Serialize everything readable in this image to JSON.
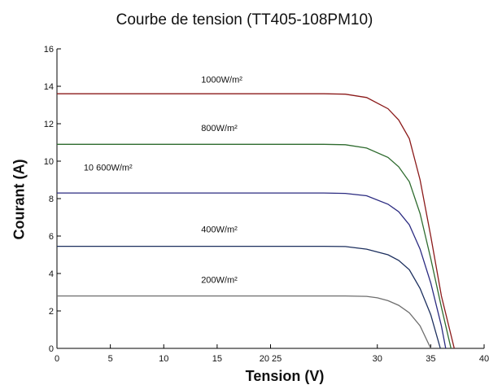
{
  "chart_data": {
    "type": "line",
    "title": "Courbe de tension (TT405-108PM10)",
    "xlabel": "Tension (V)",
    "ylabel": "Courant (A)",
    "xlim": [
      0,
      40
    ],
    "ylim": [
      0,
      16
    ],
    "x_tick_labels": [
      {
        "value": 0,
        "label": "0"
      },
      {
        "value": 5,
        "label": "5"
      },
      {
        "value": 10,
        "label": "10"
      },
      {
        "value": 15,
        "label": "15"
      },
      {
        "value": 20,
        "label": "20 25"
      },
      {
        "value": 30,
        "label": "30"
      },
      {
        "value": 35,
        "label": "35"
      },
      {
        "value": 40,
        "label": "40"
      }
    ],
    "y_tick_labels": [
      {
        "value": 0,
        "label": "0"
      },
      {
        "value": 2,
        "label": "2"
      },
      {
        "value": 4,
        "label": "4"
      },
      {
        "value": 6,
        "label": "6"
      },
      {
        "value": 8,
        "label": "8"
      },
      {
        "value": 10,
        "label": "10"
      },
      {
        "value": 12,
        "label": "12"
      },
      {
        "value": 14,
        "label": "14"
      },
      {
        "value": 16,
        "label": "16"
      }
    ],
    "grid": false,
    "series": [
      {
        "name": "1000W/m²",
        "color": "#8b1a1a",
        "x": [
          0,
          20,
          25,
          27,
          29,
          31,
          32,
          33,
          34,
          35,
          36,
          37.2
        ],
        "y": [
          13.6,
          13.6,
          13.6,
          13.58,
          13.4,
          12.8,
          12.2,
          11.2,
          9.0,
          6.0,
          2.8,
          0
        ]
      },
      {
        "name": "800W/m²",
        "color": "#2e6b2e",
        "x": [
          0,
          20,
          25,
          27,
          29,
          31,
          32,
          33,
          34,
          35,
          36,
          36.9
        ],
        "y": [
          10.9,
          10.9,
          10.9,
          10.88,
          10.7,
          10.2,
          9.7,
          8.9,
          7.2,
          4.8,
          2.2,
          0
        ]
      },
      {
        "name": "600W/m²",
        "color": "#2a2a80",
        "x": [
          0,
          20,
          25,
          27,
          29,
          31,
          32,
          33,
          34,
          35,
          36,
          36.4
        ],
        "y": [
          8.3,
          8.3,
          8.3,
          8.28,
          8.15,
          7.7,
          7.3,
          6.6,
          5.3,
          3.5,
          1.2,
          0
        ]
      },
      {
        "name": "400W/m²",
        "color": "#1c2f5e",
        "x": [
          0,
          20,
          25,
          27,
          29,
          31,
          32,
          33,
          34,
          35,
          35.9
        ],
        "y": [
          5.45,
          5.45,
          5.45,
          5.44,
          5.3,
          5.0,
          4.7,
          4.2,
          3.2,
          1.8,
          0
        ]
      },
      {
        "name": "200W/m²",
        "color": "#6e6e6e",
        "x": [
          0,
          20,
          25,
          27,
          29,
          30,
          31,
          32,
          33,
          34,
          35
        ],
        "y": [
          2.8,
          2.8,
          2.8,
          2.8,
          2.78,
          2.7,
          2.55,
          2.3,
          1.9,
          1.2,
          0
        ]
      }
    ],
    "annotations": [
      {
        "text": "1000W/m²",
        "x": 13.5,
        "y": 14.2
      },
      {
        "text": "800W/m²",
        "x": 13.5,
        "y": 11.6
      },
      {
        "text": "10 600W/m²",
        "x": 2.5,
        "y": 9.5
      },
      {
        "text": "400W/m²",
        "x": 13.5,
        "y": 6.2
      },
      {
        "text": "200W/m²",
        "x": 13.5,
        "y": 3.5
      }
    ]
  }
}
